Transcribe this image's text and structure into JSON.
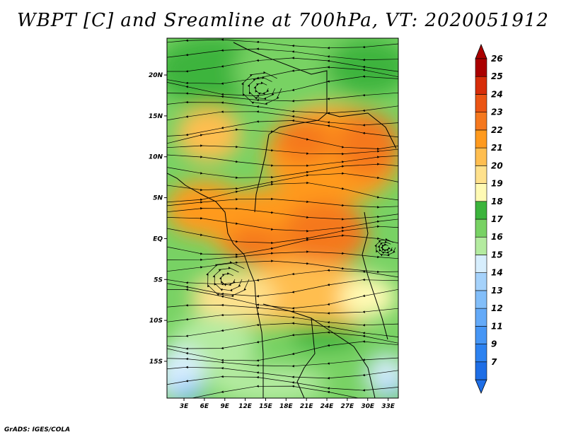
{
  "title": "WBPT [C] and Sreamline at 700hPa, VT: 2020051912",
  "footer": "GrADS: IGES/COLA",
  "map": {
    "lat_labels": [
      {
        "lat": 20,
        "label": "20N"
      },
      {
        "lat": 15,
        "label": "15N"
      },
      {
        "lat": 10,
        "label": "10N"
      },
      {
        "lat": 5,
        "label": "5N"
      },
      {
        "lat": 0,
        "label": "EQ"
      },
      {
        "lat": -5,
        "label": "5S"
      },
      {
        "lat": -10,
        "label": "10S"
      },
      {
        "lat": -15,
        "label": "15S"
      }
    ],
    "lon_labels": [
      {
        "lon": 3,
        "label": "3E"
      },
      {
        "lon": 6,
        "label": "6E"
      },
      {
        "lon": 9,
        "label": "9E"
      },
      {
        "lon": 12,
        "label": "12E"
      },
      {
        "lon": 15,
        "label": "15E"
      },
      {
        "lon": 18,
        "label": "18E"
      },
      {
        "lon": 21,
        "label": "21E"
      },
      {
        "lon": 24,
        "label": "24E"
      },
      {
        "lon": 27,
        "label": "27E"
      },
      {
        "lon": 30,
        "label": "30E"
      },
      {
        "lon": 33,
        "label": "33E"
      }
    ],
    "lat_range": [
      -19.5,
      24.5
    ],
    "lon_range": [
      0.5,
      34.5
    ]
  },
  "colorbar": {
    "levels": [
      {
        "label": "7",
        "color": "#1e6ee6"
      },
      {
        "label": "9",
        "color": "#2d82f0"
      },
      {
        "label": "11",
        "color": "#4696f5"
      },
      {
        "label": "12",
        "color": "#64aaf8"
      },
      {
        "label": "13",
        "color": "#82bef9"
      },
      {
        "label": "14",
        "color": "#a5d2fb"
      },
      {
        "label": "15",
        "color": "#d7eefd"
      },
      {
        "label": "16",
        "color": "#b4eba0"
      },
      {
        "label": "17",
        "color": "#78d264"
      },
      {
        "label": "18",
        "color": "#3cb43c"
      },
      {
        "label": "19",
        "color": "#fffab4"
      },
      {
        "label": "20",
        "color": "#ffe18c"
      },
      {
        "label": "21",
        "color": "#ffbe50"
      },
      {
        "label": "22",
        "color": "#ff9a1e"
      },
      {
        "label": "23",
        "color": "#f5781e"
      },
      {
        "label": "24",
        "color": "#eb5514"
      },
      {
        "label": "25",
        "color": "#d72d0a"
      },
      {
        "label": "26",
        "color": "#aa0000"
      }
    ]
  }
}
